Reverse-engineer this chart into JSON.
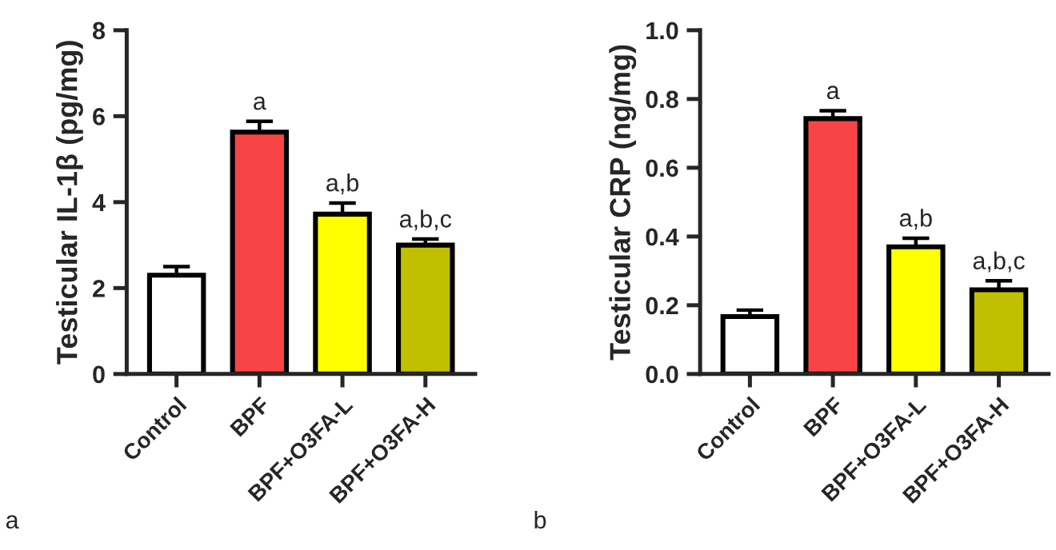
{
  "chart_data": [
    {
      "type": "bar",
      "ylabel": "Testicular IL-1β (pg/mg)",
      "categories": [
        "Control",
        "BPF",
        "BPF+O3FA-L",
        "BPF+O3FA-H"
      ],
      "values": [
        2.3,
        5.63,
        3.72,
        3.0
      ],
      "errors": [
        [
          2.3,
          2.5
        ],
        [
          5.63,
          5.88
        ],
        [
          3.72,
          3.98
        ],
        [
          3.0,
          3.14
        ]
      ],
      "colors": [
        "#ffffff",
        "#f84444",
        "#ffff00",
        "#c0c000"
      ],
      "ylim": [
        0,
        8
      ],
      "yticks": [
        0,
        2,
        4,
        6,
        8
      ],
      "grid": false,
      "legend": false,
      "annotations": [
        {
          "text": "a",
          "x": "BPF",
          "y": 5.88
        },
        {
          "text": "a,b",
          "x": "BPF+O3FA-L",
          "y": 3.98
        },
        {
          "text": "a,b,c",
          "x": "BPF+O3FA-H",
          "y": 3.14
        },
        "a"
      ]
    },
    {
      "type": "bar",
      "ylabel": "Testicular CRP (ng/mg)",
      "categories": [
        "Control",
        "BPF",
        "BPF+O3FA-L",
        "BPF+O3FA-H"
      ],
      "values": [
        0.167,
        0.743,
        0.37,
        0.245
      ],
      "errors": [
        [
          0.167,
          0.186
        ],
        [
          0.743,
          0.766
        ],
        [
          0.37,
          0.395
        ],
        [
          0.245,
          0.271
        ]
      ],
      "colors": [
        "#ffffff",
        "#f84444",
        "#ffff00",
        "#c0c000"
      ],
      "ylim": [
        0,
        1.0
      ],
      "yticks": [
        {
          "value": 0,
          "label": "0.0"
        },
        0.2,
        0.4,
        0.6,
        0.8,
        {
          "value": 1.0,
          "label": "1.0"
        }
      ],
      "grid": false,
      "legend": false,
      "annotations": [
        {
          "text": "a",
          "x": "BPF",
          "y": 0.766
        },
        {
          "text": "a,b",
          "x": "BPF+O3FA-L",
          "y": 0.395
        },
        {
          "text": "a,b,c",
          "x": "BPF+O3FA-H",
          "y": 0.271
        },
        "b"
      ]
    }
  ]
}
